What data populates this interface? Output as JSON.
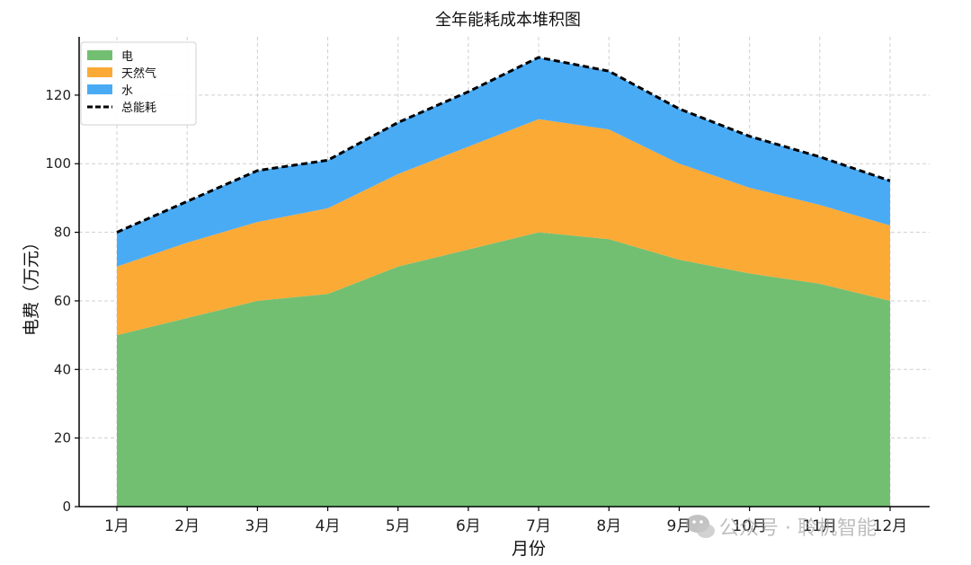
{
  "chart_data": {
    "type": "area",
    "stacked": true,
    "title": "全年能耗成本堆积图",
    "xlabel": "月份",
    "ylabel": "电费（万元）",
    "categories": [
      "1月",
      "2月",
      "3月",
      "4月",
      "5月",
      "6月",
      "7月",
      "8月",
      "9月",
      "10月",
      "11月",
      "12月"
    ],
    "ylim": [
      0,
      137
    ],
    "yticks": [
      0,
      20,
      40,
      60,
      80,
      100,
      120
    ],
    "grid": true,
    "legend_position": "top-left",
    "series": [
      {
        "name": "电",
        "color": "#72bf72",
        "values": [
          50,
          55,
          60,
          62,
          70,
          75,
          80,
          78,
          72,
          68,
          65,
          60
        ]
      },
      {
        "name": "天然气",
        "color": "#fbaa36",
        "values": [
          20,
          22,
          23,
          25,
          27,
          30,
          33,
          32,
          28,
          25,
          23,
          22
        ]
      },
      {
        "name": "水",
        "color": "#4aabf5",
        "values": [
          10,
          12,
          15,
          14,
          15,
          16,
          18,
          17,
          16,
          15,
          14,
          13
        ]
      }
    ],
    "total": {
      "name": "总能耗",
      "color": "#000000",
      "style": "dashed",
      "values": [
        80,
        89,
        98,
        101,
        112,
        121,
        131,
        127,
        116,
        108,
        102,
        95
      ]
    }
  },
  "watermark": {
    "text": "公众号 · 聆机智能",
    "icon": "wechat-icon"
  }
}
